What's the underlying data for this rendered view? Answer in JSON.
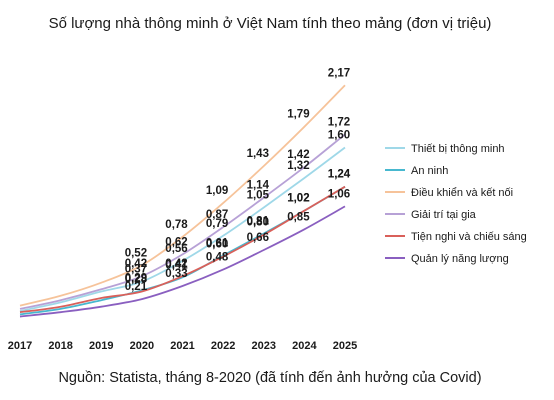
{
  "chart_data": {
    "type": "line",
    "title": "Số lượng nhà thông minh ở Việt Nam tính theo mảng (đơn vị triệu)",
    "source": "Nguồn: Statista, tháng 8-2020 (đã tính đến ảnh hưởng của Covid)",
    "x": [
      "2017",
      "2018",
      "2019",
      "2020",
      "2021",
      "2022",
      "2023",
      "2024",
      "2025"
    ],
    "ylim": [
      0,
      2.4
    ],
    "legend_position": "right",
    "series": [
      {
        "name": "Thiết bị thông minh",
        "color": "#9fd8e8",
        "values": [
          0.1,
          0.18,
          0.28,
          0.37,
          0.56,
          0.79,
          1.05,
          1.32,
          1.6
        ],
        "labels": [
          "",
          "",
          "",
          "0,37",
          "0,56",
          "0,79",
          "1,05",
          "1,32",
          "1,60"
        ]
      },
      {
        "name": "An ninh",
        "color": "#47b8cf",
        "values": [
          0.07,
          0.12,
          0.2,
          0.29,
          0.41,
          0.61,
          0.81,
          1.02,
          1.24
        ],
        "labels": [
          "",
          "",
          "",
          "0,29",
          "0,41",
          "0,61",
          "0,81",
          "1,02",
          "1,24"
        ]
      },
      {
        "name": "Điều khiển và kết nối",
        "color": "#f6c39a",
        "values": [
          0.15,
          0.24,
          0.36,
          0.52,
          0.78,
          1.09,
          1.43,
          1.79,
          2.17
        ],
        "labels": [
          "",
          "",
          "",
          "0,52",
          "0,78",
          "1,09",
          "1,43",
          "1,79",
          "2,17"
        ]
      },
      {
        "name": "Giải trí tại gia",
        "color": "#b7a1d6",
        "values": [
          0.12,
          0.2,
          0.3,
          0.42,
          0.62,
          0.87,
          1.14,
          1.42,
          1.72
        ],
        "labels": [
          "",
          "",
          "",
          "0,42",
          "0,62",
          "0,87",
          "1,14",
          "1,42",
          "1,72"
        ]
      },
      {
        "name": "Tiện nghi và chiếu sáng",
        "color": "#d9605a",
        "values": [
          0.09,
          0.14,
          0.22,
          0.28,
          0.42,
          0.6,
          0.8,
          1.02,
          1.24
        ],
        "labels": [
          "",
          "",
          "",
          "0,28",
          "0,42",
          "0,60",
          "0,80",
          "1,02",
          "1,24"
        ]
      },
      {
        "name": "Quản lý năng lượng",
        "color": "#8a5fc0",
        "values": [
          0.05,
          0.09,
          0.14,
          0.21,
          0.33,
          0.48,
          0.66,
          0.85,
          1.06
        ],
        "labels": [
          "",
          "",
          "",
          "0,21",
          "0,33",
          "0,48",
          "0,66",
          "0,85",
          "1,06"
        ]
      }
    ]
  }
}
